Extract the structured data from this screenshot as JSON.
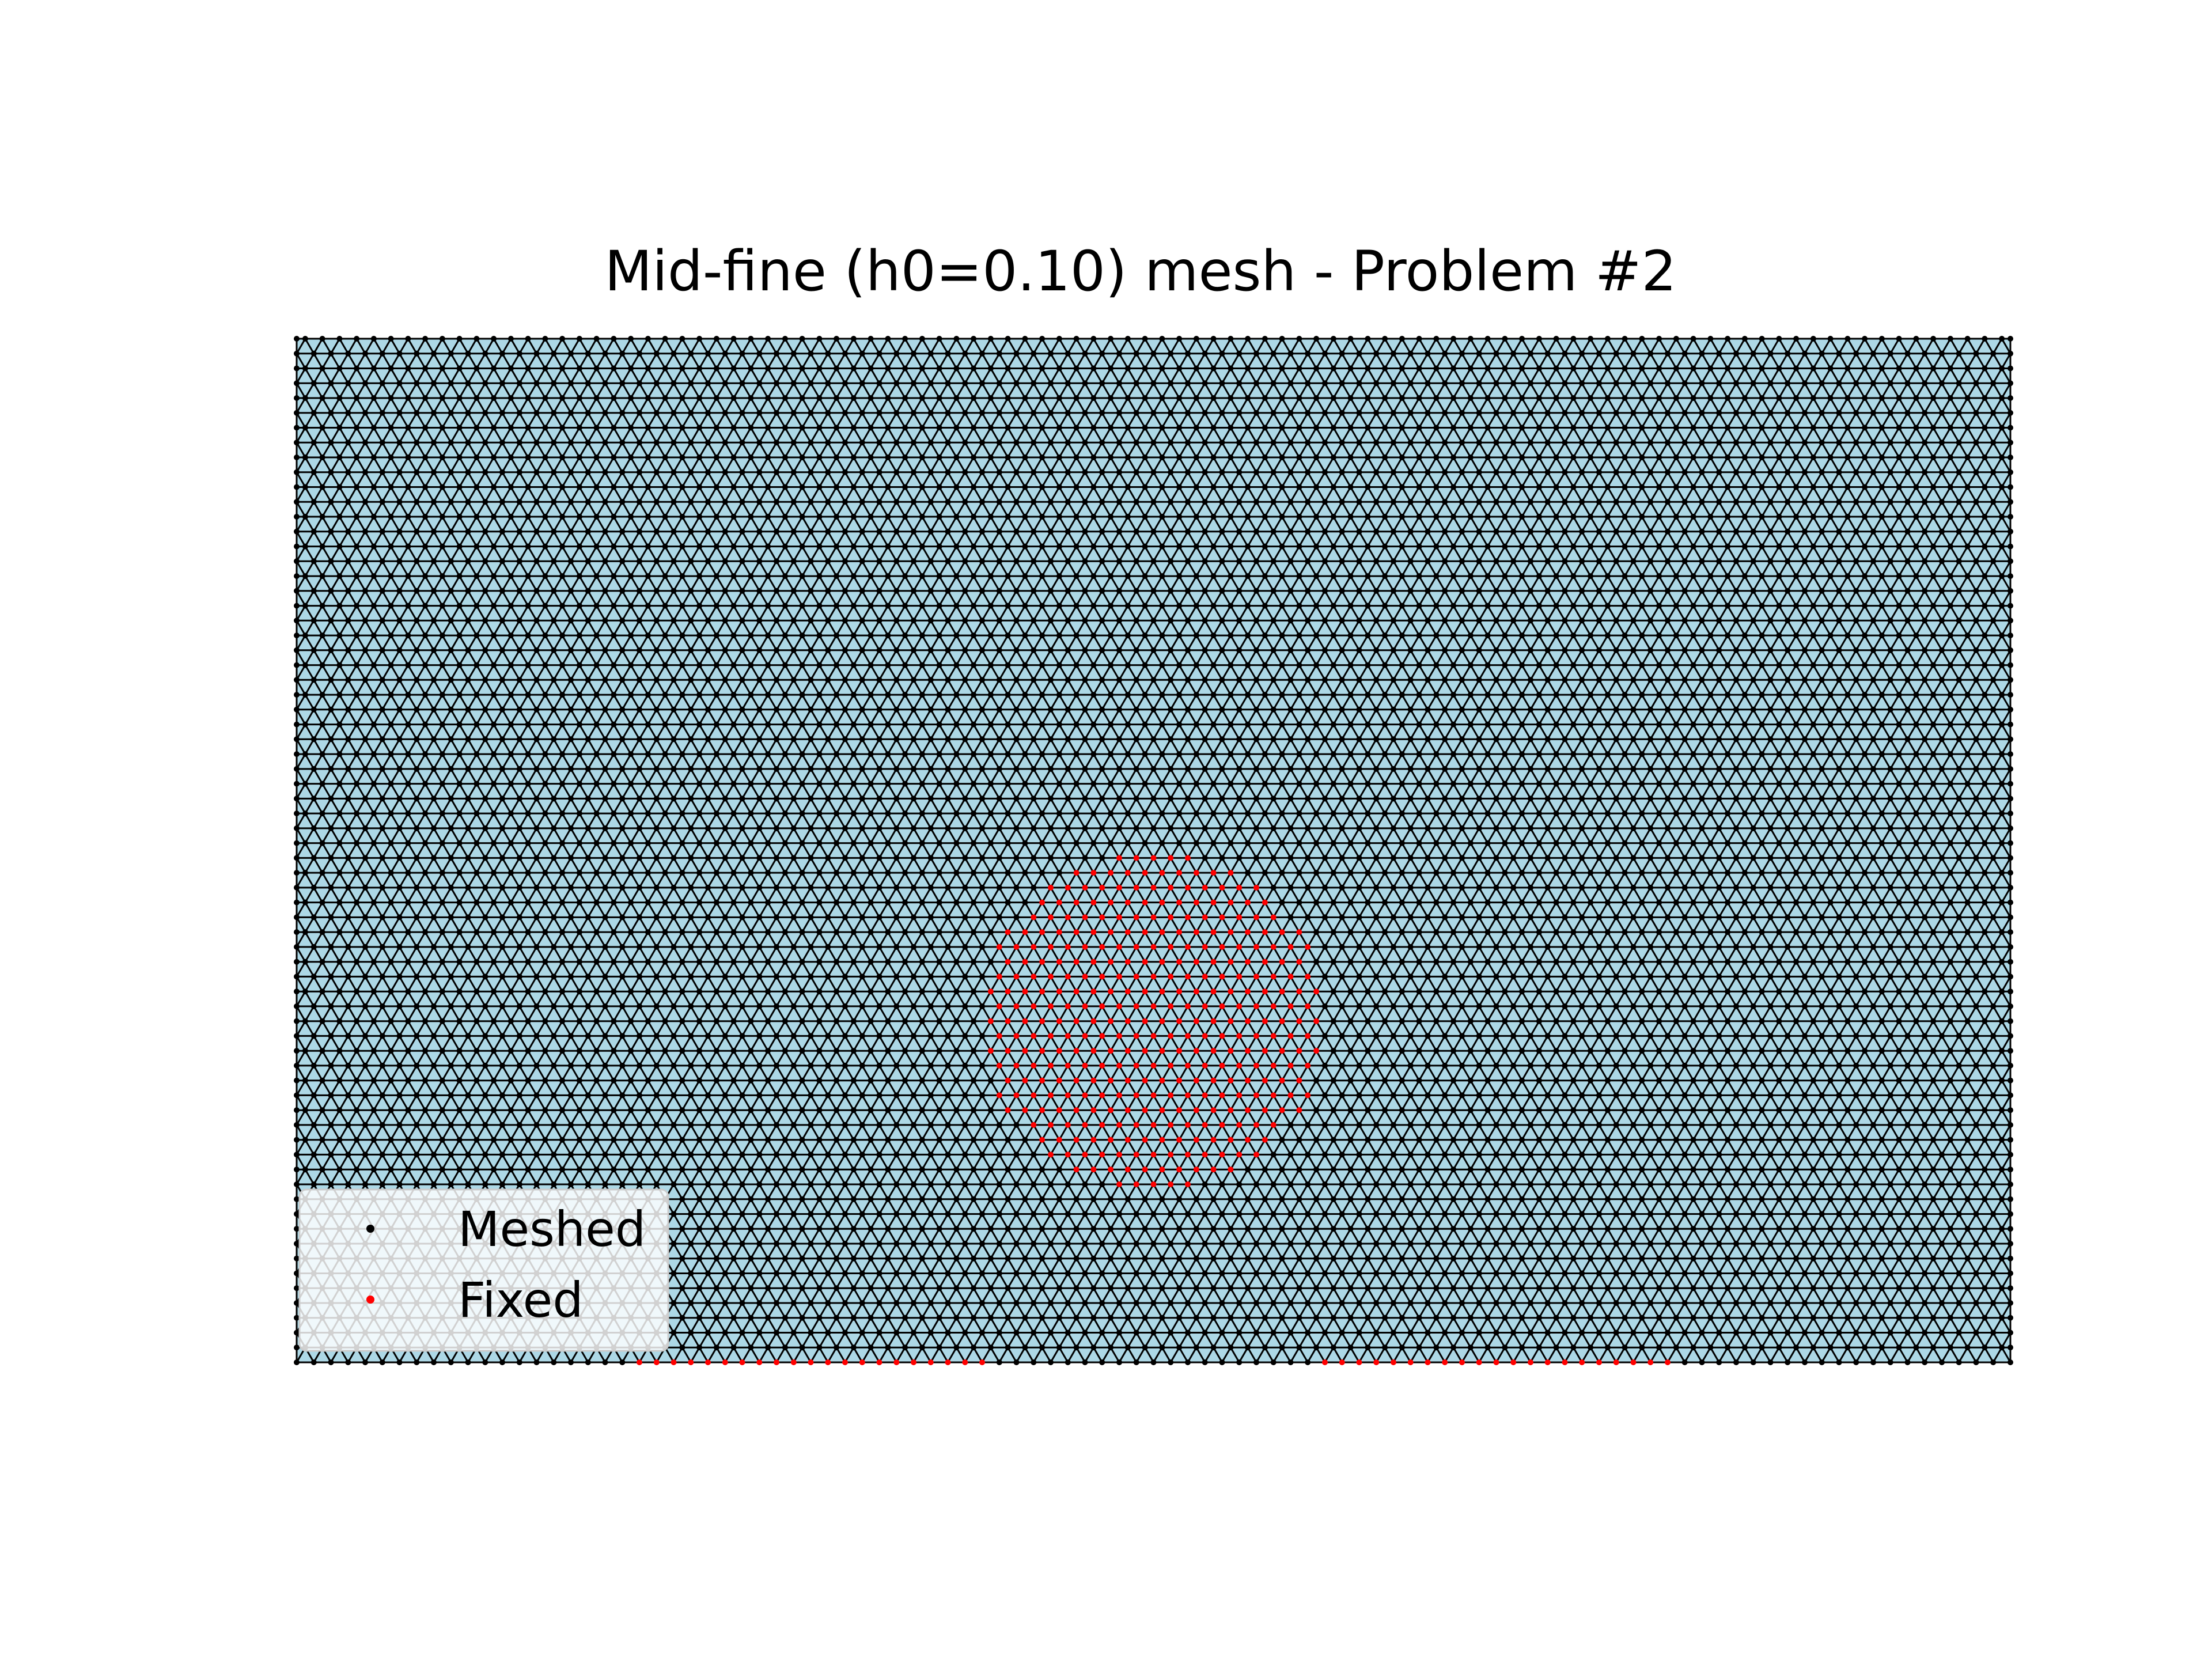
{
  "chart_data": {
    "type": "scatter",
    "title": "Mid-fine (h0=0.10) mesh - Problem #2",
    "xlabel": "",
    "ylabel": "",
    "xlim": [
      0,
      5
    ],
    "ylim": [
      0,
      3
    ],
    "axes_visible": false,
    "mesh_spacing": 0.1,
    "circle": {
      "center": [
        2.5,
        1.0
      ],
      "radius": 0.5
    },
    "fixed_bottom_segments": [
      [
        1.0,
        2.0
      ],
      [
        3.0,
        4.0
      ]
    ],
    "series": [
      {
        "name": "Meshed",
        "color": "#000000"
      },
      {
        "name": "Fixed",
        "color": "#ff0000"
      }
    ],
    "edge_color": "#000000",
    "face_color": "#add8e6",
    "legend": {
      "position": "lower left"
    }
  }
}
